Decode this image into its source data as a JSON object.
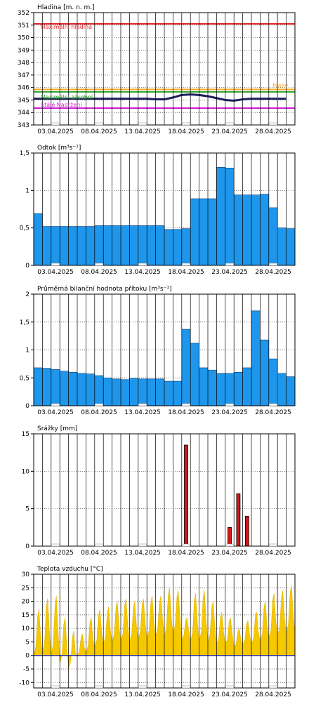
{
  "chart_data": [
    {
      "type": "line",
      "title": "Hladina [m. n. m.]",
      "ylim": [
        343,
        352
      ],
      "yticks": [
        343,
        344,
        345,
        346,
        347,
        348,
        349,
        350,
        351,
        352
      ],
      "xlim": [
        "2025-04-01",
        "2025-05-01"
      ],
      "xticks": [
        "03.04.2025",
        "08.04.2025",
        "13.04.2025",
        "18.04.2025",
        "23.04.2025",
        "28.04.2025"
      ],
      "current_day": "2025-04-29",
      "levels": [
        {
          "name": "Maximální hladina",
          "value": 351.1,
          "color": "#e0242a"
        },
        {
          "name": "Přeliv",
          "value": 345.85,
          "color": "#f5a623"
        },
        {
          "name": "Maximální zásobní",
          "value": 345.65,
          "color": "#29a329"
        },
        {
          "name": "Stálé Nadržení",
          "value": 344.35,
          "color": "#d21bd2"
        }
      ],
      "series": [
        {
          "color": "#1c1f5c",
          "x": [
            "2025-04-01",
            "2025-04-05",
            "2025-04-10",
            "2025-04-14",
            "2025-04-15",
            "2025-04-16",
            "2025-04-17",
            "2025-04-18",
            "2025-04-19",
            "2025-04-20",
            "2025-04-21",
            "2025-04-22",
            "2025-04-23",
            "2025-04-24",
            "2025-04-25",
            "2025-04-26",
            "2025-04-30"
          ],
          "values": [
            345.1,
            345.1,
            345.1,
            345.1,
            345.05,
            345.05,
            345.2,
            345.4,
            345.45,
            345.4,
            345.3,
            345.15,
            345.0,
            344.95,
            345.05,
            345.1,
            345.1
          ]
        }
      ]
    },
    {
      "type": "area",
      "title": "Odtok [m³s⁻¹]",
      "ylim": [
        0,
        1.5
      ],
      "yticks": [
        0,
        0.5,
        1,
        1.5
      ],
      "ytick_labels": [
        "0",
        "0,5",
        "1",
        "1,5"
      ],
      "xlim": [
        "2025-04-01",
        "2025-05-01"
      ],
      "xticks": [
        "03.04.2025",
        "08.04.2025",
        "13.04.2025",
        "18.04.2025",
        "23.04.2025",
        "28.04.2025"
      ],
      "current_day": "2025-04-29",
      "series": [
        {
          "color": "#1e96eb",
          "x": [
            "2025-04-01",
            "2025-04-02",
            "2025-04-03",
            "2025-04-04",
            "2025-04-05",
            "2025-04-06",
            "2025-04-07",
            "2025-04-08",
            "2025-04-09",
            "2025-04-10",
            "2025-04-11",
            "2025-04-12",
            "2025-04-13",
            "2025-04-14",
            "2025-04-15",
            "2025-04-16",
            "2025-04-17",
            "2025-04-18",
            "2025-04-19",
            "2025-04-20",
            "2025-04-21",
            "2025-04-22",
            "2025-04-23",
            "2025-04-24",
            "2025-04-25",
            "2025-04-26",
            "2025-04-27",
            "2025-04-28",
            "2025-04-29",
            "2025-04-30"
          ],
          "values": [
            0.69,
            0.52,
            0.52,
            0.52,
            0.52,
            0.52,
            0.52,
            0.53,
            0.53,
            0.53,
            0.53,
            0.53,
            0.53,
            0.53,
            0.53,
            0.48,
            0.48,
            0.49,
            0.89,
            0.89,
            0.89,
            1.31,
            1.3,
            0.94,
            0.94,
            0.94,
            0.95,
            0.77,
            0.5,
            0.49
          ]
        }
      ]
    },
    {
      "type": "area",
      "title": "Průměrná bilanční hodnota přítoku   [m³s⁻¹]",
      "ylim": [
        0,
        2
      ],
      "yticks": [
        0,
        0.5,
        1,
        1.5,
        2
      ],
      "ytick_labels": [
        "0",
        "0,5",
        "1",
        "1,5",
        "2"
      ],
      "xlim": [
        "2025-04-01",
        "2025-05-01"
      ],
      "xticks": [
        "03.04.2025",
        "08.04.2025",
        "13.04.2025",
        "18.04.2025",
        "23.04.2025",
        "28.04.2025"
      ],
      "current_day": "2025-04-29",
      "series": [
        {
          "color": "#1e96eb",
          "x": [
            "2025-04-01",
            "2025-04-02",
            "2025-04-03",
            "2025-04-04",
            "2025-04-05",
            "2025-04-06",
            "2025-04-07",
            "2025-04-08",
            "2025-04-09",
            "2025-04-10",
            "2025-04-11",
            "2025-04-12",
            "2025-04-13",
            "2025-04-14",
            "2025-04-15",
            "2025-04-16",
            "2025-04-17",
            "2025-04-18",
            "2025-04-19",
            "2025-04-20",
            "2025-04-21",
            "2025-04-22",
            "2025-04-23",
            "2025-04-24",
            "2025-04-25",
            "2025-04-26",
            "2025-04-27",
            "2025-04-28",
            "2025-04-29",
            "2025-04-30"
          ],
          "values": [
            0.68,
            0.67,
            0.65,
            0.62,
            0.6,
            0.58,
            0.57,
            0.54,
            0.5,
            0.48,
            0.47,
            0.49,
            0.48,
            0.48,
            0.48,
            0.44,
            0.44,
            1.37,
            1.12,
            0.68,
            0.64,
            0.58,
            0.58,
            0.6,
            0.68,
            1.7,
            1.18,
            0.84,
            0.58,
            0.52
          ]
        }
      ]
    },
    {
      "type": "bar",
      "title": "Srážky [mm]",
      "ylim": [
        0,
        15
      ],
      "yticks": [
        0,
        5,
        10,
        15
      ],
      "xlim": [
        "2025-04-01",
        "2025-05-01"
      ],
      "xticks": [
        "03.04.2025",
        "08.04.2025",
        "13.04.2025",
        "18.04.2025",
        "23.04.2025",
        "28.04.2025"
      ],
      "current_day": "2025-04-29",
      "series": [
        {
          "color": "#cc1a1a",
          "x": [
            "2025-04-18",
            "2025-04-23",
            "2025-04-24",
            "2025-04-25"
          ],
          "values": [
            13.5,
            2.5,
            7.0,
            4.0
          ]
        }
      ]
    },
    {
      "type": "area",
      "title": "Teplota vzduchu [°C]",
      "ylim": [
        -12,
        30
      ],
      "yticks": [
        -10,
        -5,
        0,
        5,
        10,
        15,
        20,
        25,
        30
      ],
      "xlim": [
        "2025-04-01",
        "2025-05-01"
      ],
      "xticks": [
        "03.04.2025",
        "08.04.2025",
        "13.04.2025",
        "18.04.2025",
        "23.04.2025",
        "28.04.2025"
      ],
      "current_day": "2025-04-29",
      "series": [
        {
          "color": "#f5c800",
          "x": [
            "2025-04-01",
            "2025-04-02",
            "2025-04-03",
            "2025-04-04",
            "2025-04-05",
            "2025-04-06",
            "2025-04-07",
            "2025-04-08",
            "2025-04-09",
            "2025-04-10",
            "2025-04-11",
            "2025-04-12",
            "2025-04-13",
            "2025-04-14",
            "2025-04-15",
            "2025-04-16",
            "2025-04-17",
            "2025-04-18",
            "2025-04-19",
            "2025-04-20",
            "2025-04-21",
            "2025-04-22",
            "2025-04-23",
            "2025-04-24",
            "2025-04-25",
            "2025-04-26",
            "2025-04-27",
            "2025-04-28",
            "2025-04-29",
            "2025-04-30"
          ],
          "daily_min": [
            0,
            1,
            0,
            -3,
            -5,
            0,
            1,
            3,
            4,
            5,
            5,
            5,
            6,
            6,
            7,
            7,
            8,
            6,
            5,
            5,
            5,
            4,
            4,
            3,
            4,
            4,
            5,
            6,
            7,
            8
          ],
          "daily_max": [
            17,
            21,
            22,
            14,
            9,
            8,
            14,
            17,
            18,
            20,
            21,
            20,
            21,
            22,
            22,
            25,
            24,
            14,
            23,
            24,
            20,
            16,
            14,
            10,
            13,
            16,
            20,
            23,
            24,
            26
          ]
        }
      ]
    }
  ]
}
